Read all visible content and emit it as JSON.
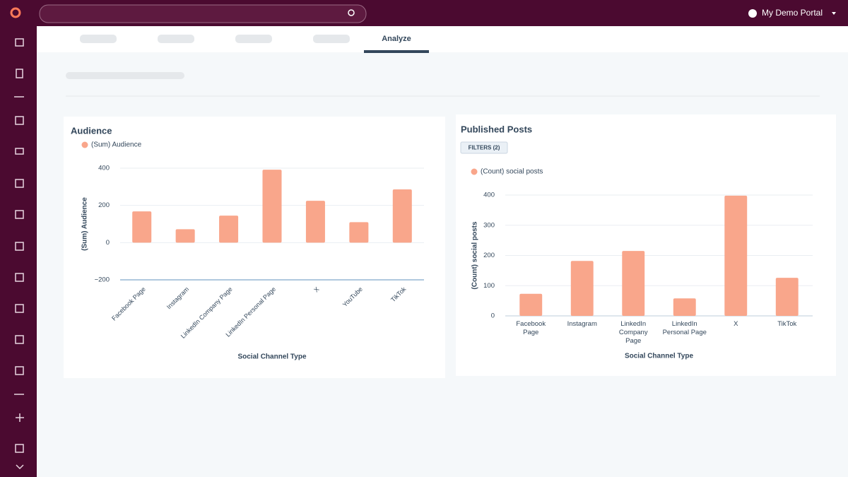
{
  "portal_name": "My Demo Portal",
  "active_tab": "Analyze",
  "chart_data": [
    {
      "type": "bar",
      "title": "Audience",
      "categories": [
        "Facebook Page",
        "Instagram",
        "LinkedIn Company Page",
        "LinkedIn Personal Page",
        "X",
        "YouTube",
        "TikTok"
      ],
      "series": [
        {
          "name": "(Sum) Audience",
          "color": "#f9a68b",
          "values": [
            168,
            72,
            145,
            392,
            225,
            110,
            286
          ]
        }
      ],
      "x_label": "Social Channel Type",
      "y_label": "(Sum) Audience",
      "ylim": [
        -200,
        400
      ],
      "yticks": [
        {
          "value": -200,
          "label": "−200"
        },
        0,
        200,
        400
      ],
      "grid": true
    },
    {
      "type": "bar",
      "title": "Published Posts",
      "filter_badge": "FILTERS (2)",
      "categories": [
        "Facebook Page",
        "Instagram",
        "LinkedIn Company Page",
        "LinkedIn Personal Page",
        "X",
        "TikTok"
      ],
      "series": [
        {
          "name": "(Count) social posts",
          "color": "#f9a68b",
          "values": [
            73,
            182,
            215,
            58,
            398,
            126
          ]
        }
      ],
      "x_label": "Social Channel Type",
      "y_label": "(Count) social posts",
      "ylim": [
        0,
        400
      ],
      "yticks": [
        0,
        100,
        200,
        300,
        400
      ],
      "grid": true
    }
  ]
}
